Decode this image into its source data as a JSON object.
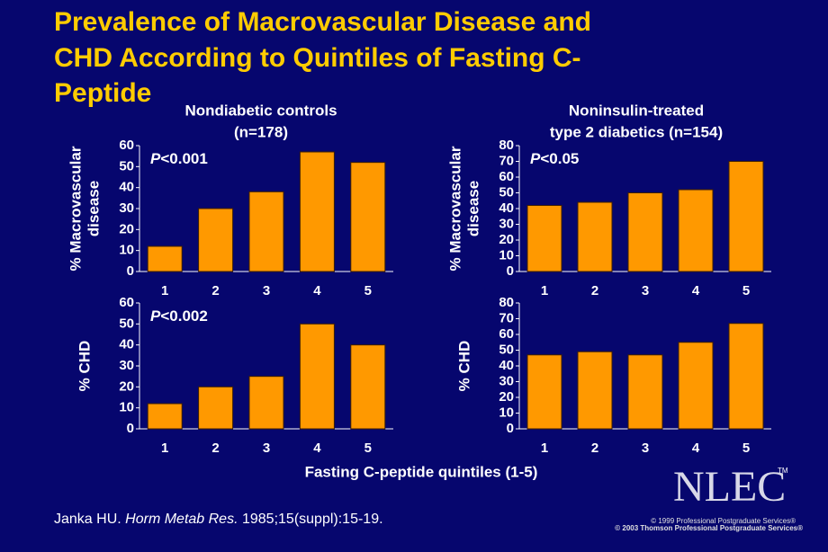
{
  "title": [
    "Prevalence of Macrovascular Disease and",
    "CHD According to Quintiles of Fasting C-",
    "Peptide"
  ],
  "column_headings": [
    [
      "Nondiabetic controls",
      "(n=178)"
    ],
    [
      "Noninsulin-treated",
      "type 2 diabetics (n=154)"
    ]
  ],
  "x_axis_label": "Fasting C-peptide quintiles (1-5)",
  "citation": {
    "author": "Janka HU.",
    "journal": "Horm Metab Res.",
    "details": "1985;15(suppl):15-19."
  },
  "logo": {
    "text": "NLEC",
    "mark": "TM"
  },
  "copyright": [
    "© 1999 Professional Postgraduate Services®",
    "© 2003 Thomson Professional Postgraduate Services®"
  ],
  "chart_data": [
    {
      "type": "bar",
      "ylabel": [
        "% Macrovascular",
        "disease"
      ],
      "annotation": "P<0.001",
      "color": "#ff9900",
      "categories": [
        "1",
        "2",
        "3",
        "4",
        "5"
      ],
      "values": [
        12,
        30,
        38,
        57,
        52
      ],
      "ylim": [
        0,
        60
      ],
      "yticks": [
        0,
        10,
        20,
        30,
        40,
        50,
        60
      ]
    },
    {
      "type": "bar",
      "ylabel": [
        "% Macrovascular",
        "disease"
      ],
      "annotation": "P<0.05",
      "color": "#ff9900",
      "categories": [
        "1",
        "2",
        "3",
        "4",
        "5"
      ],
      "values": [
        42,
        44,
        50,
        52,
        70
      ],
      "ylim": [
        0,
        80
      ],
      "yticks": [
        0,
        10,
        20,
        30,
        40,
        50,
        60,
        70,
        80
      ]
    },
    {
      "type": "bar",
      "ylabel": [
        "% CHD"
      ],
      "annotation": "P<0.002",
      "color": "#ff9900",
      "categories": [
        "1",
        "2",
        "3",
        "4",
        "5"
      ],
      "values": [
        12,
        20,
        25,
        50,
        40
      ],
      "ylim": [
        0,
        60
      ],
      "yticks": [
        0,
        10,
        20,
        30,
        40,
        50,
        60
      ]
    },
    {
      "type": "bar",
      "ylabel": [
        "% CHD"
      ],
      "color": "#ff9900",
      "categories": [
        "1",
        "2",
        "3",
        "4",
        "5"
      ],
      "values": [
        47,
        49,
        47,
        55,
        67
      ],
      "ylim": [
        0,
        80
      ],
      "yticks": [
        0,
        10,
        20,
        30,
        40,
        50,
        60,
        70,
        80
      ]
    }
  ]
}
